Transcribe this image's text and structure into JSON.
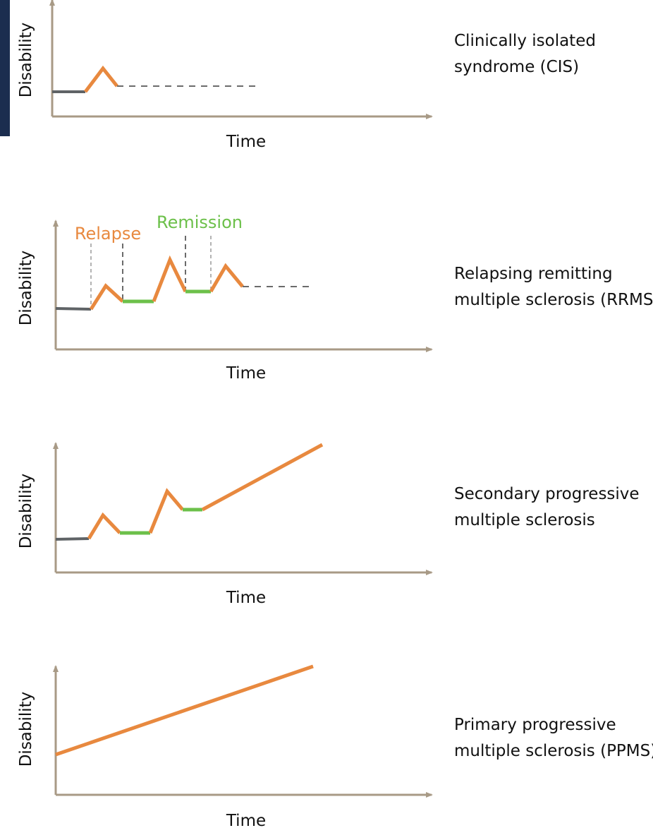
{
  "colors": {
    "axis": "#a89a86",
    "baseline": "#5f6366",
    "relapse": "#e8893f",
    "remission": "#6cc04a",
    "dashed": "#6b6b6b",
    "corner_tab": "#1b2d4f"
  },
  "panels": [
    {
      "key": "cis",
      "title_lines": [
        "Clinically isolated",
        "syndrome (CIS)"
      ],
      "y_label": "Disability",
      "x_label": "Time"
    },
    {
      "key": "rrms",
      "title_lines": [
        "Relapsing remitting",
        "multiple sclerosis (RRMS"
      ],
      "y_label": "Disability",
      "x_label": "Time",
      "relapse_label": "Relapse",
      "remission_label": "Remission"
    },
    {
      "key": "spms",
      "title_lines": [
        "Secondary progressive",
        "multiple sclerosis"
      ],
      "y_label": "Disability",
      "x_label": "Time"
    },
    {
      "key": "ppms",
      "title_lines": [
        "Primary progressive",
        "multiple sclerosis (PPMS)"
      ],
      "y_label": "Disability",
      "x_label": "Time"
    }
  ]
}
